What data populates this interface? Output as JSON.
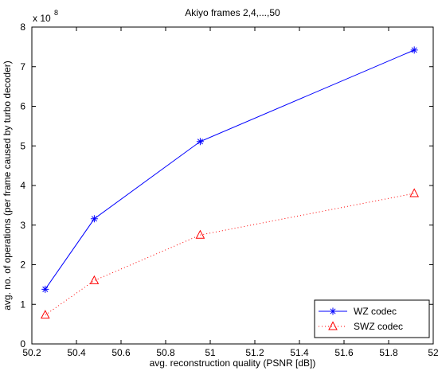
{
  "chart_data": {
    "type": "line",
    "title": "Akiyo frames 2,4,...,50",
    "xlabel": "avg. reconstruction quality (PSNR [dB])",
    "ylabel": "avg. no. of operations (per frame caused by turbo decoder)",
    "y_exponent_label": "x 10",
    "y_exponent": "8",
    "xlim": [
      50.2,
      52
    ],
    "ylim": [
      0,
      8
    ],
    "xticks": [
      "50.2",
      "50.4",
      "50.6",
      "50.8",
      "51",
      "51.2",
      "51.4",
      "51.6",
      "51.8",
      "52"
    ],
    "yticks": [
      "0",
      "1",
      "2",
      "3",
      "4",
      "5",
      "6",
      "7",
      "8"
    ],
    "grid": false,
    "legend_position": "bottom-right",
    "series": [
      {
        "name": "WZ codec",
        "color": "#0000ff",
        "line_style": "solid",
        "marker": "asterisk",
        "x": [
          50.26,
          50.48,
          50.955,
          51.915
        ],
        "y": [
          1.38,
          3.16,
          5.11,
          7.42
        ]
      },
      {
        "name": "SWZ codec",
        "color": "#ff0000",
        "line_style": "dotted",
        "marker": "triangle",
        "x": [
          50.26,
          50.48,
          50.955,
          51.915
        ],
        "y": [
          0.73,
          1.6,
          2.75,
          3.8
        ]
      }
    ]
  }
}
